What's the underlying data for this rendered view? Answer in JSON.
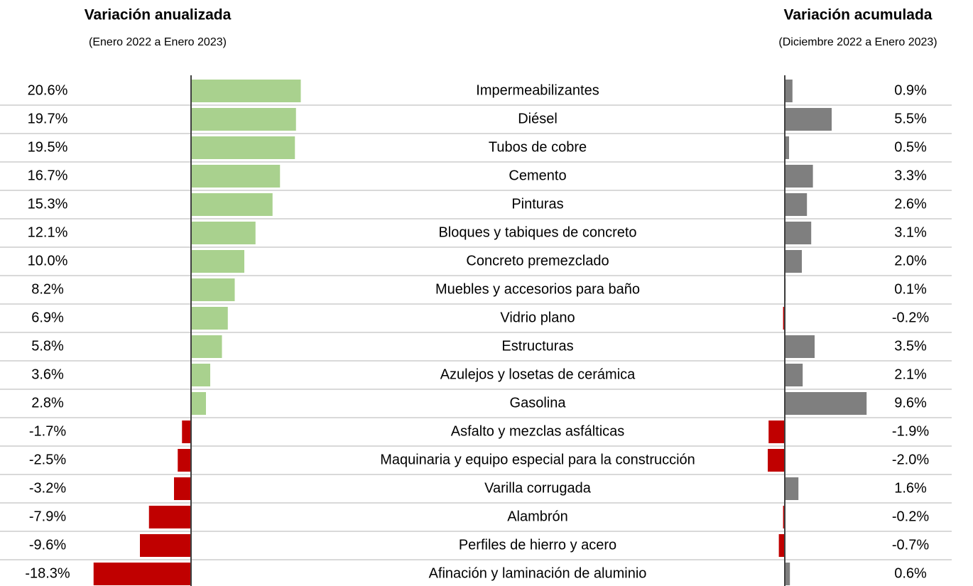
{
  "chart_data": {
    "type": "bar",
    "orientation": "horizontal",
    "categories": [
      "Impermeabilizantes",
      "Diésel",
      "Tubos de cobre",
      "Cemento",
      "Pinturas",
      "Bloques y tabiques de concreto",
      "Concreto premezclado",
      "Muebles y accesorios para baño",
      "Vidrio plano",
      "Estructuras",
      "Azulejos y losetas de cerámica",
      "Gasolina",
      "Asfalto y mezclas asfálticas",
      "Maquinaria y equipo especial para la construcción",
      "Varilla corrugada",
      "Alambrón",
      "Perfiles de hierro y acero",
      "Afinación y laminación de aluminio"
    ],
    "series": [
      {
        "name": "Variación anualizada",
        "subtitle": "(Enero 2022 a Enero 2023)",
        "color": "#a9d18e",
        "negative_color": "#c00000",
        "values": [
          20.6,
          19.7,
          19.5,
          16.7,
          15.3,
          12.1,
          10.0,
          8.2,
          6.9,
          5.8,
          3.6,
          2.8,
          -1.7,
          -2.5,
          -3.2,
          -7.9,
          -9.6,
          -18.3
        ],
        "value_labels": [
          "20.6%",
          "19.7%",
          "19.5%",
          "16.7%",
          "15.3%",
          "12.1%",
          "10.0%",
          "8.2%",
          "6.9%",
          "5.8%",
          "3.6%",
          "2.8%",
          "-1.7%",
          "-2.5%",
          "-3.2%",
          "-7.9%",
          "-9.6%",
          "-18.3%"
        ]
      },
      {
        "name": "Variación acumulada",
        "subtitle": "(Diciembre 2022 a Enero 2023)",
        "color": "#7f7f7f",
        "negative_color": "#c00000",
        "values": [
          0.9,
          5.5,
          0.5,
          3.3,
          2.6,
          3.1,
          2.0,
          0.1,
          -0.2,
          3.5,
          2.1,
          9.6,
          -1.9,
          -2.0,
          1.6,
          -0.2,
          -0.7,
          0.6
        ],
        "value_labels": [
          "0.9%",
          "5.5%",
          "0.5%",
          "3.3%",
          "2.6%",
          "3.1%",
          "2.0%",
          "0.1%",
          "-0.2%",
          "3.5%",
          "2.1%",
          "9.6%",
          "-1.9%",
          "-2.0%",
          "1.6%",
          "-0.2%",
          "-0.7%",
          "0.6%"
        ]
      }
    ]
  }
}
